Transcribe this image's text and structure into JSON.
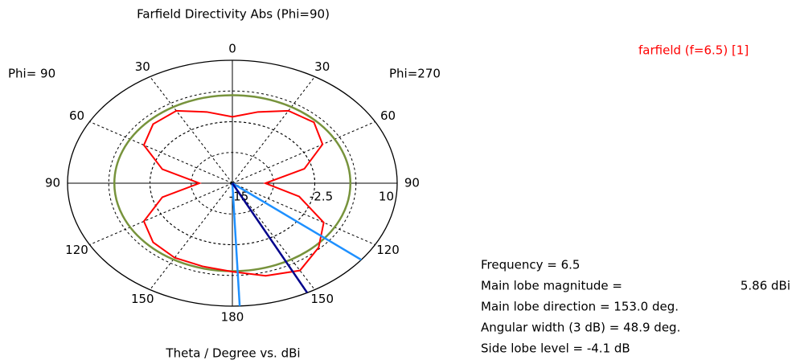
{
  "chart_data": {
    "type": "polar",
    "title": "Farfield Directivity Abs (Phi=90)",
    "left_label": "Phi= 90",
    "right_label": "Phi=270",
    "axis_label": "Theta / Degree vs. dBi",
    "series": [
      {
        "name": "farfield (f=6.5) [1]",
        "color": "#ff0000",
        "x": [
          0,
          15,
          30,
          45,
          60,
          75,
          90,
          105,
          120,
          135,
          150,
          165,
          180,
          195,
          210,
          225,
          240,
          255,
          270,
          285,
          300,
          315,
          330,
          345
        ],
        "values": [
          -1.5,
          0,
          2,
          2.5,
          0.8,
          -3.7,
          -10,
          -4.5,
          1,
          3.5,
          5.5,
          4.5,
          3,
          2.5,
          2.5,
          2,
          0.5,
          -4,
          -10,
          -4,
          0.5,
          2,
          2,
          0
        ]
      }
    ],
    "reference_circle": {
      "value": 2.9,
      "color": "#77933c"
    },
    "main_lobe_direction": {
      "value": 153.0,
      "color": "#00008b"
    },
    "width_edges": {
      "values": [
        128.55,
        177.45
      ],
      "color": "#1e90ff"
    },
    "rlim": [
      -15,
      10
    ],
    "rticks": [
      {
        "value": -15,
        "label": "-15"
      },
      {
        "value": -2.5,
        "label": "-2.5"
      },
      10
    ],
    "rgrid": [
      -8.75,
      -2.5,
      3.75
    ],
    "angle_ticks": [
      {
        "value": 0,
        "label": "0"
      },
      {
        "value": 30,
        "label": "30"
      },
      {
        "value": 60,
        "label": "60"
      },
      {
        "value": 90,
        "label": "90"
      },
      {
        "value": 120,
        "label": "120"
      },
      {
        "value": 150,
        "label": "150"
      },
      {
        "value": 180,
        "label": "180"
      },
      {
        "value": 210,
        "label": "150"
      },
      {
        "value": 240,
        "label": "120"
      },
      {
        "value": 270,
        "label": "90"
      },
      {
        "value": 300,
        "label": "60"
      },
      {
        "value": 330,
        "label": "30"
      }
    ],
    "info": [
      "Frequency = 6.5",
      "Main lobe magnitude =",
      "5.86 dBi",
      "Main lobe direction = 153.0 deg.",
      "Angular width (3 dB) = 48.9 deg.",
      "Side lobe level = -4.1 dB"
    ]
  }
}
